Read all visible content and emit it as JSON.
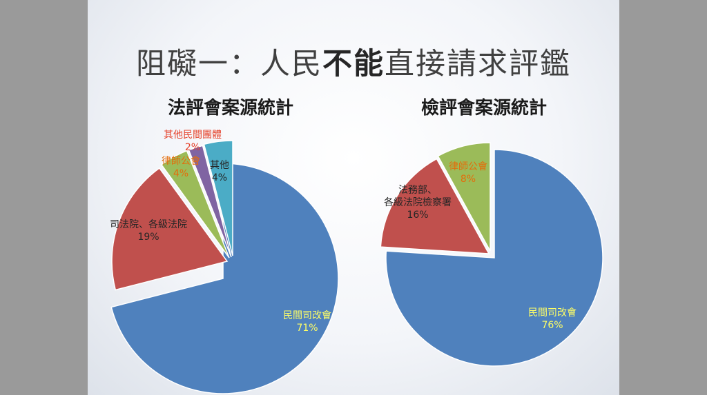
{
  "title": {
    "pre": "阻礙一：人民",
    "bold": "不能",
    "post": "直接請求評鑑"
  },
  "colors": {
    "blue": "#4F81BD",
    "red": "#C0504D",
    "green": "#9BBB59",
    "purple": "#8064A2",
    "teal": "#4BACC6",
    "label_yellow": "#FFFF66",
    "label_orange": "#E46C0A",
    "label_red": "#E5412A"
  },
  "chart_data": [
    {
      "type": "pie",
      "title": "法評會案源統計",
      "slices": [
        {
          "name": "民間司改會",
          "value": 71,
          "label": "71%",
          "color": "#4F81BD"
        },
        {
          "name": "司法院、各級法院",
          "value": 19,
          "label": "19%",
          "color": "#C0504D"
        },
        {
          "name": "律師公會",
          "value": 4,
          "label": "4%",
          "color": "#9BBB59"
        },
        {
          "name": "其他民間團體",
          "value": 2,
          "label": "2%",
          "color": "#8064A2"
        },
        {
          "name": "其他",
          "value": 4,
          "label": "4%",
          "color": "#4BACC6"
        }
      ]
    },
    {
      "type": "pie",
      "title": "檢評會案源統計",
      "slices": [
        {
          "name": "民間司改會",
          "value": 76,
          "label": "76%",
          "color": "#4F81BD"
        },
        {
          "name": "法務部、各級法院檢察署",
          "value": 16,
          "label": "16%",
          "color": "#C0504D"
        },
        {
          "name": "律師公會",
          "value": 8,
          "label": "8%",
          "color": "#9BBB59"
        }
      ]
    }
  ]
}
